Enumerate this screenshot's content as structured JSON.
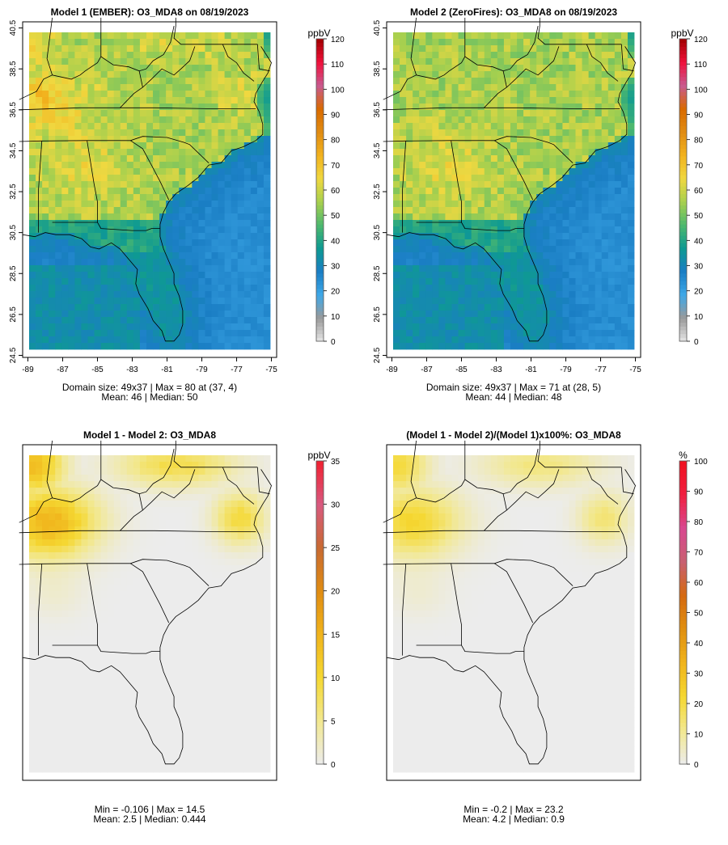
{
  "chart_data": [
    {
      "type": "heatmap",
      "title": "Model 1 (EMBER): O3_MDA8 on 08/19/2023",
      "units_label": "ppbV",
      "x_ticks": [
        "-89",
        "-87",
        "-85",
        "-83",
        "-81",
        "-79",
        "-77",
        "-75"
      ],
      "y_ticks": [
        "24.5",
        "26.5",
        "28.5",
        "30.5",
        "32.5",
        "34.5",
        "36.5",
        "38.5",
        "40.5"
      ],
      "xlim": [
        -89.3,
        -74.7
      ],
      "ylim": [
        24.4,
        40.8
      ],
      "colorbar": {
        "min": 0,
        "max": 120,
        "ticks": [
          "0",
          "10",
          "20",
          "30",
          "40",
          "50",
          "60",
          "70",
          "80",
          "90",
          "100",
          "110",
          "120"
        ]
      },
      "scale": "abs",
      "stats_line1": "Domain size: 49x37 | Max = 80 at (37, 4)",
      "stats_line2": "Mean: 46 |  Median: 50",
      "field": {
        "mode": "ember",
        "land_mean": 57,
        "ocean_mean": 28,
        "hotspot_max": 80
      },
      "has_basemap": true
    },
    {
      "type": "heatmap",
      "title": "Model 2 (ZeroFires): O3_MDA8 on 08/19/2023",
      "units_label": "ppbV",
      "x_ticks": [
        "-89",
        "-87",
        "-85",
        "-83",
        "-81",
        "-79",
        "-77",
        "-75"
      ],
      "y_ticks": [
        "24.5",
        "26.5",
        "28.5",
        "30.5",
        "32.5",
        "34.5",
        "36.5",
        "38.5",
        "40.5"
      ],
      "xlim": [
        -89.3,
        -74.7
      ],
      "ylim": [
        24.4,
        40.8
      ],
      "colorbar": {
        "min": 0,
        "max": 120,
        "ticks": [
          "0",
          "10",
          "20",
          "30",
          "40",
          "50",
          "60",
          "70",
          "80",
          "90",
          "100",
          "110",
          "120"
        ]
      },
      "scale": "abs",
      "stats_line1": "Domain size: 49x37 | Max = 71 at (28, 5)",
      "stats_line2": "Mean: 44 |  Median: 48",
      "field": {
        "mode": "zero",
        "land_mean": 52,
        "ocean_mean": 28,
        "hotspot_max": 71
      },
      "has_basemap": true
    },
    {
      "type": "heatmap",
      "title": "Model 1 - Model 2: O3_MDA8",
      "units_label": "ppbV",
      "xlim": [
        -89.3,
        -74.7
      ],
      "ylim": [
        24.4,
        40.8
      ],
      "colorbar": {
        "min": 0,
        "max": 35,
        "ticks": [
          "0",
          "5",
          "10",
          "15",
          "20",
          "25",
          "30",
          "35"
        ]
      },
      "scale": "diff",
      "stats_line1": "Min = -0.106 | Max = 14.5",
      "stats_line2": "Mean: 2.5 |  Median: 0.444",
      "field": {
        "mode": "diff",
        "min": -0.106,
        "max": 14.5
      },
      "has_basemap": true
    },
    {
      "type": "heatmap",
      "title": "(Model 1 - Model 2)/(Model 1)x100%: O3_MDA8",
      "units_label": "%",
      "xlim": [
        -89.3,
        -74.7
      ],
      "ylim": [
        24.4,
        40.8
      ],
      "colorbar": {
        "min": 0,
        "max": 100,
        "ticks": [
          "0",
          "10",
          "20",
          "30",
          "40",
          "50",
          "60",
          "70",
          "80",
          "90",
          "100"
        ]
      },
      "scale": "pct",
      "stats_line1": "Min = -0.2 | Max = 23.2",
      "stats_line2": "Mean: 4.2 |  Median: 0.9",
      "field": {
        "mode": "pct",
        "min": -0.2,
        "max": 23.2
      },
      "has_basemap": true
    }
  ],
  "colors": {
    "abs_palette": [
      "#e6e6e6",
      "#9a9a9a",
      "#3ea8e8",
      "#1a7ec4",
      "#0e9a92",
      "#4db86e",
      "#a8d04e",
      "#f0d840",
      "#f2b21e",
      "#e08c12",
      "#d96a00",
      "#c85a90",
      "#f0103a",
      "#a00000"
    ],
    "diff_palette": [
      "#ececec",
      "#f2e890",
      "#f5d832",
      "#f0b41c",
      "#e08c12",
      "#c86a32",
      "#d85a80",
      "#f02030"
    ],
    "pct_palette": [
      "#ececec",
      "#f2e890",
      "#f5d832",
      "#f0b41c",
      "#e09010",
      "#d56a10",
      "#c86070",
      "#d84890",
      "#f02040",
      "#f01020"
    ]
  }
}
